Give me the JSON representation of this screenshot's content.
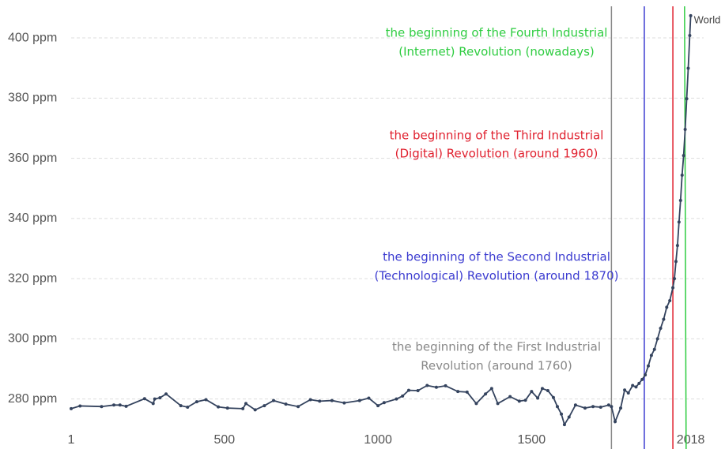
{
  "chart_data": {
    "type": "line",
    "x": [
      1,
      30,
      100,
      140,
      160,
      180,
      240,
      268,
      273,
      290,
      310,
      358,
      380,
      410,
      440,
      480,
      510,
      560,
      570,
      600,
      630,
      660,
      700,
      740,
      780,
      810,
      850,
      890,
      940,
      970,
      1000,
      1020,
      1060,
      1080,
      1100,
      1130,
      1160,
      1190,
      1220,
      1260,
      1290,
      1320,
      1350,
      1370,
      1390,
      1430,
      1460,
      1480,
      1500,
      1520,
      1535,
      1553,
      1571,
      1584,
      1597,
      1607,
      1622,
      1643,
      1674,
      1700,
      1725,
      1751,
      1760,
      1772,
      1790,
      1803,
      1815,
      1829,
      1840,
      1850,
      1860,
      1870,
      1880,
      1890,
      1900,
      1910,
      1920,
      1930,
      1940,
      1950,
      1960,
      1965,
      1970,
      1975,
      1980,
      1985,
      1990,
      1995,
      2000,
      2005,
      2010,
      2015,
      2018
    ],
    "series": [
      {
        "name": "World",
        "color": "#34435e",
        "values": [
          276.8,
          277.7,
          277.5,
          278,
          278,
          277.6,
          280.1,
          278.5,
          280,
          280.4,
          281.7,
          277.8,
          277.3,
          279.1,
          279.8,
          277.4,
          277,
          276.8,
          278.5,
          276.4,
          277.8,
          279.5,
          278.3,
          277.5,
          279.8,
          279.3,
          279.5,
          278.7,
          279.5,
          280.3,
          277.8,
          278.8,
          280,
          281,
          282.9,
          282.8,
          284.5,
          283.9,
          284.4,
          282.5,
          282.3,
          278.5,
          281.7,
          283.5,
          278.5,
          280.8,
          279.3,
          279.6,
          282.5,
          280.3,
          283.5,
          282.8,
          280.5,
          277.5,
          275,
          271.5,
          274,
          278,
          277,
          277.5,
          277.3,
          278,
          277.5,
          272.5,
          277,
          283,
          282,
          284.5,
          284,
          285.2,
          286.5,
          288,
          291,
          294.5,
          296.5,
          300,
          303.5,
          306.5,
          310.5,
          312.7,
          317,
          320,
          325.7,
          331,
          338.8,
          346,
          354.4,
          360.9,
          369.6,
          379.8,
          389.9,
          400.8,
          407.4
        ]
      }
    ],
    "xlim": [
      1,
      2018
    ],
    "xticks": [
      1,
      500,
      1000,
      1500,
      2018
    ],
    "ylim": [
      271,
      410.5
    ],
    "yticks": [
      {
        "value": 280,
        "label": "280 ppm"
      },
      {
        "value": 300,
        "label": "300 ppm"
      },
      {
        "value": 320,
        "label": "320 ppm"
      },
      {
        "value": 340,
        "label": "340 ppm"
      },
      {
        "value": 360,
        "label": "360 ppm"
      },
      {
        "value": 380,
        "label": "380 ppm"
      },
      {
        "value": 400,
        "label": "400 ppm"
      }
    ],
    "grid": true,
    "annotations": [
      {
        "x": 1760,
        "color": "#888888",
        "text": [
          "the beginning of the First Industrial",
          "Revolution (around 1760)"
        ]
      },
      {
        "x": 1867,
        "color": "#3b3bd0",
        "text": [
          "the beginning of the Second Industrial",
          "(Technological) Revolution (around 1870)"
        ]
      },
      {
        "x": 1960,
        "color": "#e0202e",
        "text": [
          "the beginning of the Third Industrial",
          "(Digital) Revolution (around 1960)"
        ]
      },
      {
        "x": 1998,
        "color": "#2ecc40",
        "text": [
          "the beginning of the Fourth Industrial",
          "(Internet) Revolution (nowadays)"
        ]
      }
    ]
  }
}
